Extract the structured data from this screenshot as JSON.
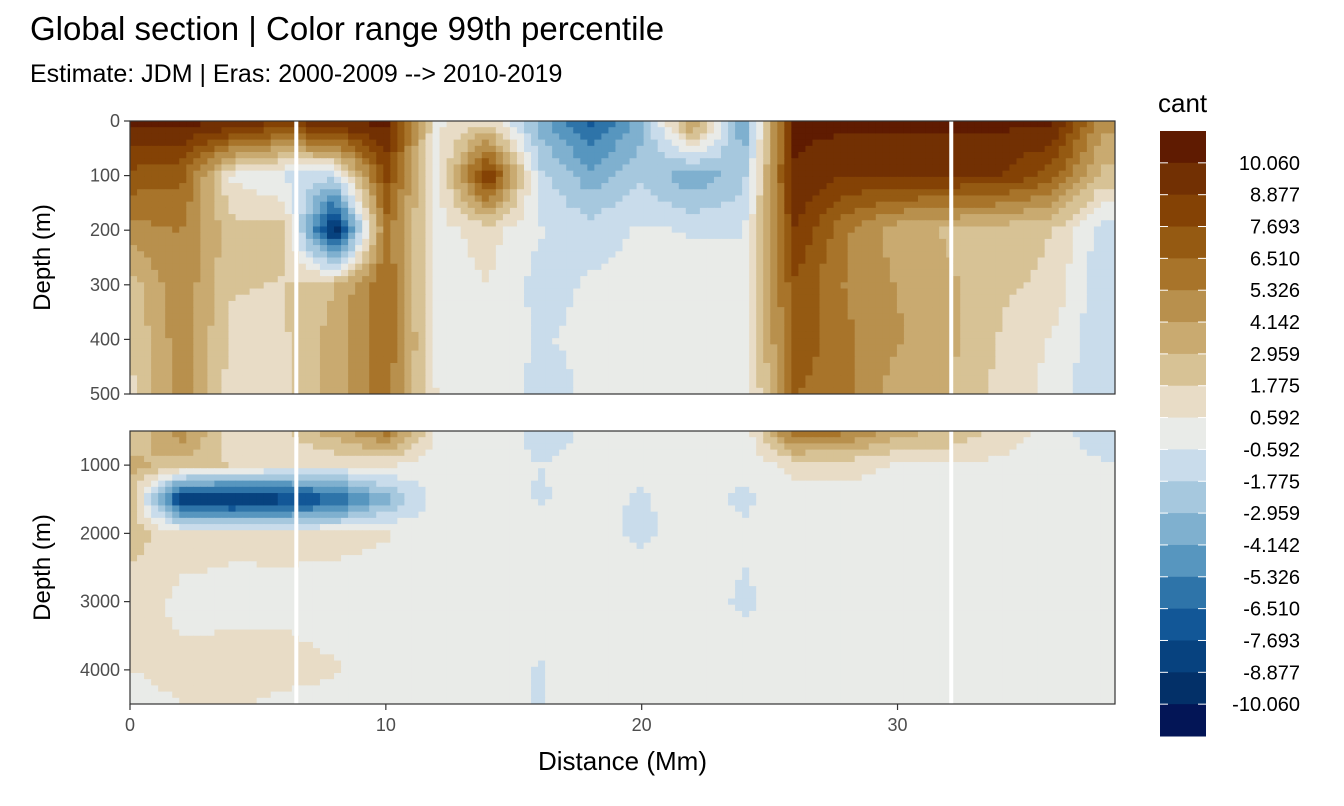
{
  "title": "Global section | Color range 99th percentile",
  "subtitle": "Estimate: JDM  | Eras: 2000-2009 --> 2010-2019",
  "chart_data": {
    "type": "heatmap",
    "xlabel": "Distance (Mm)",
    "ylabel": "Depth (m)",
    "xlim": [
      0,
      38.5
    ],
    "x_ticks": [
      0,
      10,
      20,
      30
    ],
    "panels": [
      {
        "name": "upper",
        "ylim": [
          0,
          500
        ],
        "y_ticks": [
          0,
          100,
          200,
          300,
          400,
          500
        ]
      },
      {
        "name": "lower",
        "ylim": [
          500,
          4500
        ],
        "y_ticks": [
          1000,
          2000,
          3000,
          4000
        ]
      }
    ],
    "gap_lines_x": [
      6.5,
      32.1
    ],
    "legend": {
      "title": "cant",
      "placement": "right",
      "labels": [
        "10.060",
        "8.877",
        "7.693",
        "6.510",
        "5.326",
        "4.142",
        "2.959",
        "1.775",
        "0.592",
        "-0.592",
        "-1.775",
        "-2.959",
        "-4.142",
        "-5.326",
        "-6.510",
        "-7.693",
        "-8.877",
        "-10.060"
      ],
      "colors": [
        "#5f1b01",
        "#723003",
        "#844205",
        "#955a12",
        "#a8742a",
        "#b8904d",
        "#c9aa70",
        "#d7c295",
        "#e8dcc6",
        "#e9ebe8",
        "#c9dceb",
        "#a6c8de",
        "#7fb0cf",
        "#5796bf",
        "#2e74a9",
        "#125797",
        "#07427f",
        "#033068",
        "#031556"
      ]
    },
    "value_grid": {
      "x": [
        0,
        2,
        4,
        6,
        8,
        10,
        12,
        14,
        16,
        18,
        20,
        22,
        24,
        26,
        28,
        30,
        32,
        34,
        36,
        38
      ],
      "depth": [
        0,
        100,
        200,
        300,
        400,
        500,
        1000,
        1500,
        2000,
        3000,
        4000,
        4500
      ],
      "values": [
        [
          10.4,
          10.4,
          10.4,
          8.9,
          10.4,
          10.4,
          0.4,
          1.4,
          -3.5,
          -6.9,
          -3.5,
          5.0,
          -4.3,
          10.4,
          10.4,
          10.4,
          10.4,
          10.4,
          10.4,
          4.7
        ],
        [
          7.3,
          6.9,
          0.4,
          -0.9,
          -1.3,
          8.1,
          0.0,
          9.2,
          -1.4,
          -3.7,
          -2.0,
          -4.0,
          -2.2,
          10.0,
          8.9,
          8.9,
          8.9,
          8.9,
          7.1,
          2.5
        ],
        [
          4.8,
          5.4,
          2.2,
          2.4,
          -9.9,
          5.9,
          0.1,
          1.1,
          -0.5,
          -1.2,
          -0.4,
          -0.7,
          -0.7,
          8.9,
          5.5,
          3.5,
          2.8,
          2.2,
          1.8,
          -1.1
        ],
        [
          2.4,
          5.1,
          1.9,
          1.7,
          2.9,
          6.5,
          0.1,
          0.6,
          -1.1,
          -0.4,
          -0.2,
          0.1,
          0.0,
          7.5,
          5.2,
          4.1,
          3.2,
          2.0,
          1.6,
          -1.5
        ],
        [
          1.8,
          4.9,
          1.4,
          1.6,
          3.5,
          6.4,
          0.4,
          0.5,
          -0.7,
          -0.3,
          -0.4,
          -0.6,
          -0.2,
          7.4,
          5.6,
          4.3,
          3.3,
          1.7,
          0.5,
          -1.6
        ],
        [
          1.4,
          5.0,
          1.1,
          1.5,
          3.7,
          6.0,
          0.5,
          0.3,
          -1.1,
          -0.4,
          -0.4,
          -0.5,
          -0.4,
          6.6,
          5.6,
          3.4,
          3.0,
          1.4,
          0.2,
          -1.5
        ],
        [
          3.4,
          2.3,
          1.7,
          0.9,
          0.6,
          0.8,
          -0.1,
          0.1,
          -0.6,
          -0.2,
          -0.4,
          -0.3,
          -0.3,
          1.0,
          1.1,
          0.5,
          0.4,
          0.3,
          -0.1,
          -0.4
        ],
        [
          2.9,
          -8.8,
          -9.3,
          -8.5,
          -6.8,
          -3.4,
          0.0,
          0.0,
          -0.7,
          -0.3,
          -0.7,
          -0.2,
          -0.8,
          0.0,
          0.0,
          0.0,
          0.0,
          0.0,
          -0.2,
          0.0
        ],
        [
          2.4,
          1.1,
          0.9,
          0.8,
          0.9,
          0.7,
          0.0,
          0.1,
          -0.1,
          -0.2,
          -0.8,
          0.0,
          -0.4,
          0.0,
          0.0,
          0.0,
          0.0,
          0.0,
          0.0,
          0.0
        ],
        [
          1.2,
          0.3,
          0.2,
          0.4,
          0.1,
          0.0,
          0.0,
          0.0,
          0.0,
          0.0,
          0.0,
          0.0,
          -0.8,
          0.0,
          0.0,
          0.0,
          0.0,
          0.0,
          0.0,
          0.0
        ],
        [
          0.6,
          0.9,
          1.1,
          0.9,
          0.7,
          0.1,
          0.0,
          0.0,
          -0.7,
          0.0,
          0.0,
          0.0,
          0.0,
          0.0,
          0.0,
          0.0,
          0.0,
          0.0,
          0.0,
          0.0
        ],
        [
          0.2,
          0.6,
          0.7,
          0.4,
          0.3,
          0.0,
          0.0,
          0.0,
          -0.7,
          0.0,
          0.0,
          0.0,
          0.0,
          0.0,
          0.0,
          0.0,
          0.0,
          0.0,
          0.0,
          0.0
        ]
      ]
    }
  }
}
